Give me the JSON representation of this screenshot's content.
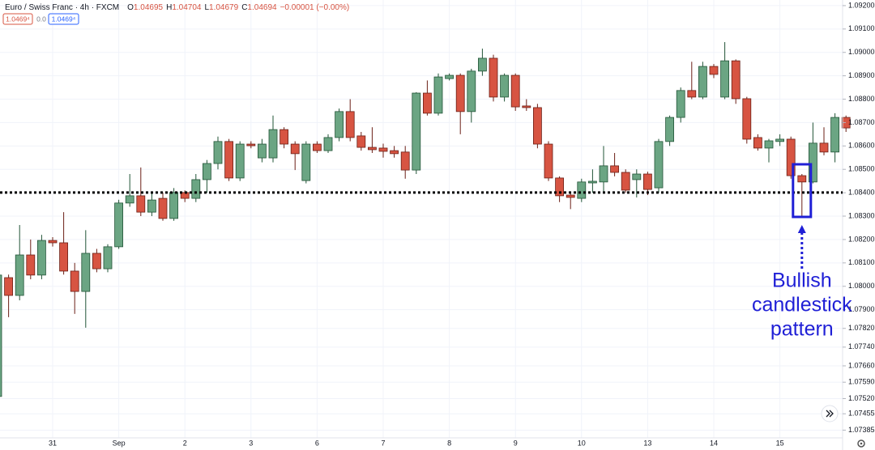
{
  "chart_data": {
    "type": "candlestick",
    "title": "Euro / Swiss Franc · 4h · FXCM",
    "ohlc_legend": [
      {
        "label": "O",
        "value": "1.04695"
      },
      {
        "label": "H",
        "value": "1.04704"
      },
      {
        "label": "L",
        "value": "1.04679"
      },
      {
        "label": "C",
        "value": "1.04694"
      }
    ],
    "change": "−0.00001 (−0.00%)",
    "badges": [
      "1.0469⁴",
      "0.0",
      "1.0469⁴"
    ],
    "annotation": [
      "Bullish",
      "candlestick",
      "pattern"
    ],
    "up_color": "#6ba583",
    "down_color": "#d75442",
    "grid": true,
    "support_level": 1.08401,
    "ylim": [
      1.07352,
      1.09224
    ],
    "yticks": [
      {
        "value": 1.092,
        "label": "1.09200"
      },
      {
        "value": 1.091,
        "label": "1.09100"
      },
      {
        "value": 1.09,
        "label": "1.09000"
      },
      {
        "value": 1.089,
        "label": "1.08900"
      },
      {
        "value": 1.088,
        "label": "1.08800"
      },
      {
        "value": 1.087,
        "label": "1.08700"
      },
      {
        "value": 1.086,
        "label": "1.08600"
      },
      {
        "value": 1.085,
        "label": "1.08500"
      },
      {
        "value": 1.084,
        "label": "1.08400"
      },
      {
        "value": 1.083,
        "label": "1.08300"
      },
      {
        "value": 1.082,
        "label": "1.08200"
      },
      {
        "value": 1.081,
        "label": "1.08100"
      },
      {
        "value": 1.08,
        "label": "1.08000"
      },
      {
        "value": 1.079,
        "label": "1.07900"
      },
      {
        "value": 1.0782,
        "label": "1.07820"
      },
      {
        "value": 1.0774,
        "label": "1.07740"
      },
      {
        "value": 1.0766,
        "label": "1.07660"
      },
      {
        "value": 1.0759,
        "label": "1.07590"
      },
      {
        "value": 1.0752,
        "label": "1.07520"
      },
      {
        "value": 1.07455,
        "label": "1.07455"
      },
      {
        "value": 1.07385,
        "label": "1.07385"
      }
    ],
    "categories": [
      null,
      null,
      null,
      null,
      null,
      "31",
      null,
      null,
      null,
      null,
      null,
      "Sep",
      null,
      null,
      null,
      null,
      null,
      "2",
      null,
      null,
      null,
      null,
      null,
      "3",
      null,
      null,
      null,
      null,
      null,
      "6",
      null,
      null,
      null,
      null,
      null,
      "7",
      null,
      null,
      null,
      null,
      null,
      "8",
      null,
      null,
      null,
      null,
      null,
      "9",
      null,
      null,
      null,
      null,
      null,
      "10",
      null,
      null,
      null,
      null,
      null,
      "13",
      null,
      null,
      null,
      null,
      null,
      "14",
      null,
      null,
      null,
      null,
      null,
      "15",
      null,
      null,
      null,
      null,
      null,
      null
    ],
    "open": [
      1.07529,
      1.08037,
      1.07961,
      1.08134,
      1.08048,
      1.08196,
      1.08186,
      1.08065,
      1.07978,
      1.08141,
      1.08075,
      1.08169,
      1.08356,
      1.08387,
      1.08317,
      1.08376,
      1.0829,
      1.08401,
      1.08376,
      1.08456,
      1.08525,
      1.08619,
      1.08463,
      1.08608,
      1.08549,
      1.08549,
      1.0867,
      1.08608,
      1.08452,
      1.08608,
      1.0858,
      1.08636,
      1.08747,
      1.08643,
      1.08594,
      1.08591,
      1.0858,
      1.08574,
      1.08497,
      1.08826,
      1.0874,
      1.08888,
      1.08902,
      1.08747,
      1.0892,
      1.08975,
      1.08809,
      1.08902,
      1.08771,
      1.08764,
      1.08608,
      1.08463,
      1.0839,
      1.08376,
      1.08442,
      1.08446,
      1.08515,
      1.08487,
      1.08456,
      1.0848,
      1.08421,
      1.08619,
      1.08722,
      1.08837,
      1.08809,
      1.0894,
      1.08809,
      1.08964,
      1.08802,
      1.08636,
      1.08591,
      1.08619,
      1.08629,
      1.08473,
      1.08446,
      1.08612,
      1.08574,
      1.08722
    ],
    "high": [
      1.0806,
      1.0805,
      1.08262,
      1.082,
      1.0822,
      1.0821,
      1.08317,
      1.081,
      1.0824,
      1.0816,
      1.0818,
      1.0837,
      1.0848,
      1.08508,
      1.084,
      1.084,
      1.0842,
      1.0841,
      1.0848,
      1.0854,
      1.0864,
      1.0863,
      1.0862,
      1.0862,
      1.0863,
      1.0873,
      1.0868,
      1.0862,
      1.0862,
      1.0862,
      1.0865,
      1.0876,
      1.088,
      1.0866,
      1.0868,
      1.0861,
      1.086,
      1.086,
      1.0883,
      1.0888,
      1.0891,
      1.0891,
      1.0891,
      1.0893,
      1.09016,
      1.0899,
      1.0891,
      1.0891,
      1.088,
      1.0878,
      1.0862,
      1.0847,
      1.084,
      1.0846,
      1.085,
      1.086,
      1.0857,
      1.085,
      1.085,
      1.0849,
      1.0863,
      1.0873,
      1.0885,
      1.0896,
      1.0896,
      1.0895,
      1.09044,
      1.0897,
      1.0881,
      1.0865,
      1.0863,
      1.0865,
      1.0864,
      1.0848,
      1.087,
      1.0868,
      1.0874,
      1.0873
    ],
    "low": [
      1.0752,
      1.07868,
      1.0794,
      1.0803,
      1.0803,
      1.0817,
      1.0805,
      1.07882,
      1.07823,
      1.0806,
      1.0806,
      1.0816,
      1.0834,
      1.083,
      1.083,
      1.0828,
      1.0828,
      1.0836,
      1.0836,
      1.084,
      1.085,
      1.0845,
      1.0845,
      1.0859,
      1.0853,
      1.0853,
      1.0859,
      1.08497,
      1.0844,
      1.0857,
      1.0857,
      1.0862,
      1.0862,
      1.0858,
      1.0857,
      1.0855,
      1.0855,
      1.0846,
      1.0848,
      1.0873,
      1.0873,
      1.0888,
      1.0865,
      1.087,
      1.089,
      1.0879,
      1.0879,
      1.0875,
      1.0875,
      1.0859,
      1.0845,
      1.0836,
      1.0833,
      1.0836,
      1.084,
      1.084,
      1.0847,
      1.084,
      1.0838,
      1.0839,
      1.084,
      1.086,
      1.087,
      1.088,
      1.088,
      1.0889,
      1.088,
      1.0878,
      1.0861,
      1.0858,
      1.0853,
      1.086,
      1.0846,
      1.08297,
      1.0844,
      1.0856,
      1.0853,
      1.0866
    ],
    "close": [
      1.08048,
      1.07961,
      1.08134,
      1.08048,
      1.08196,
      1.08186,
      1.08065,
      1.07978,
      1.08141,
      1.08075,
      1.08169,
      1.08356,
      1.08387,
      1.08317,
      1.08369,
      1.0829,
      1.08401,
      1.08376,
      1.08456,
      1.08525,
      1.08619,
      1.08463,
      1.08608,
      1.08601,
      1.08608,
      1.0867,
      1.08608,
      1.08567,
      1.08608,
      1.0858,
      1.08636,
      1.08747,
      1.08636,
      1.08594,
      1.08584,
      1.08577,
      1.08567,
      1.08497,
      1.08826,
      1.0874,
      1.08895,
      1.08902,
      1.08747,
      1.0892,
      1.08975,
      1.08809,
      1.08902,
      1.08767,
      1.08764,
      1.08608,
      1.08463,
      1.08387,
      1.0838,
      1.08446,
      1.08449,
      1.08515,
      1.08487,
      1.08411,
      1.0848,
      1.08414,
      1.08619,
      1.08722,
      1.08837,
      1.08809,
      1.0894,
      1.08906,
      1.08964,
      1.08802,
      1.08629,
      1.08591,
      1.08622,
      1.08629,
      1.08473,
      1.08446,
      1.08612,
      1.08574,
      1.08722,
      1.08677
    ]
  }
}
